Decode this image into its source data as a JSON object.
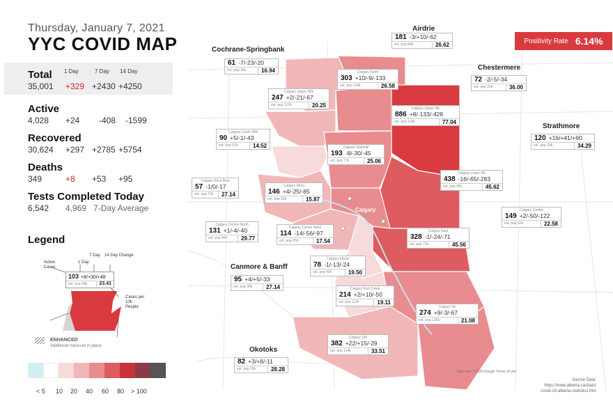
{
  "header": {
    "date": "Thursday, January 7, 2021",
    "title": "YYC COVID MAP"
  },
  "columns": {
    "day1": "1 Day",
    "day7": "7 Day",
    "day14": "14 Day"
  },
  "stats": {
    "total": {
      "label": "Total",
      "value": "35,001",
      "d1": "+329",
      "d7": "+2430",
      "d14": "+4250"
    },
    "active": {
      "label": "Active",
      "value": "4,028",
      "d1": "+24",
      "d7": "-408",
      "d14": "-1599"
    },
    "recovered": {
      "label": "Recovered",
      "value": "30,624",
      "d1": "+297",
      "d7": "+2785",
      "d14": "+5754"
    },
    "deaths": {
      "label": "Deaths",
      "value": "349",
      "d1": "+8",
      "d7": "+53",
      "d14": "+95"
    },
    "tests": {
      "label": "Tests Completed Today",
      "value": "6,542",
      "avg": "4,969",
      "avg_label": "7-Day Average"
    }
  },
  "legend": {
    "title": "Legend",
    "active_cases": "Active Cases",
    "day1": "1 Day",
    "day7": "7 Day",
    "day14": "14 Day Change",
    "example_count": "103",
    "example_change": "+8/+30/+48",
    "example_pop": "est. pop 44k",
    "example_per": "23.41",
    "per10k": "Cases per 10k People",
    "enhanced": "ENHANCED",
    "enhanced_sub": "Additional measure in place",
    "scale_colors": [
      "#d4eef3",
      "#ffffff",
      "#f7dada",
      "#f1b7b8",
      "#e88c8f",
      "#de5b60",
      "#c93238",
      "#8b3a4a",
      "#555555"
    ],
    "scale_labels": [
      "< 5",
      "10",
      "20",
      "40",
      "60",
      "80",
      "> 100"
    ]
  },
  "positivity": {
    "label": "Positivity Rate",
    "value": "6.14%"
  },
  "places": {
    "airdrie": "Airdrie",
    "cochrane": "Cochrane-Springbank",
    "chestermere": "Chestermere",
    "strathmore": "Strathmore",
    "canmore": "Canmore & Banff",
    "okotoks": "Okotoks",
    "calgary": "Calgary"
  },
  "regions": [
    {
      "key": "airdrie",
      "small": "",
      "count": "181",
      "change": "-3/+10/-62",
      "pop": "est. pop 68k",
      "per": "26.62"
    },
    {
      "key": "cochrane",
      "small": "",
      "count": "61",
      "change": "-7/-23/-20",
      "pop": "est. pop 36k",
      "per": "16.94"
    },
    {
      "key": "north",
      "small": "Calgary North",
      "count": "303",
      "change": "+10/-9/-133",
      "pop": "est. pop 114k",
      "per": "26.58"
    },
    {
      "key": "chestermere",
      "small": "",
      "count": "72",
      "change": "-2/-5/-34",
      "pop": "est. pop 20k",
      "per": "36.00"
    },
    {
      "key": "uppernw",
      "small": "Calgary Upper NW",
      "count": "247",
      "change": "+2/-21/-67",
      "pop": "est. pop 122k",
      "per": "20.25"
    },
    {
      "key": "upperne",
      "small": "Calgary Upper NE",
      "count": "886",
      "change": "+8/-133/-428",
      "pop": "est. pop 115k",
      "per": "77.04"
    },
    {
      "key": "strathmore",
      "small": "",
      "count": "120",
      "change": "+16/+41/+60",
      "pop": "est. pop 35k",
      "per": "34.29"
    },
    {
      "key": "lowernw",
      "small": "Calgary Lower NW",
      "count": "90",
      "change": "+5/-1/-43",
      "pop": "est. pop 62k",
      "per": "14.52"
    },
    {
      "key": "nosehill",
      "small": "Calgary Nosehill",
      "count": "193",
      "change": "-8/-30/-45",
      "pop": "est. pop 77k",
      "per": "25.06"
    },
    {
      "key": "lowerne",
      "small": "Calgary Lower NE",
      "count": "438",
      "change": "-16/-65/-283",
      "pop": "est. pop 96k",
      "per": "45.62"
    },
    {
      "key": "westbow",
      "small": "Calgary West Bow",
      "count": "57",
      "change": "-1/0/-17",
      "pop": "est. pop 21k",
      "per": "27.14"
    },
    {
      "key": "west",
      "small": "Calgary West",
      "count": "146",
      "change": "+4/-25/-85",
      "pop": "est. pop 92k",
      "per": "15.87"
    },
    {
      "key": "centre",
      "small": "Calgary Centre",
      "count": "149",
      "change": "+2/-50/-122",
      "pop": "est. pop 66k",
      "per": "22.58"
    },
    {
      "key": "centrenorth",
      "small": "Calgary Centre North",
      "count": "131",
      "change": "+1/-4/-40",
      "pop": "est. pop 44k",
      "per": "29.77"
    },
    {
      "key": "centrewest",
      "small": "Calgary Centre West",
      "count": "114",
      "change": "-14/-56/-97",
      "pop": "est. pop 65k",
      "per": "17.54"
    },
    {
      "key": "east",
      "small": "Calgary East",
      "count": "328",
      "change": "-1/-24/-71",
      "pop": "est. pop 72k",
      "per": "45.56"
    },
    {
      "key": "elbow",
      "small": "Calgary Elbow",
      "count": "78",
      "change": "-1/-13/-24",
      "pop": "est. pop 40k",
      "per": "19.50"
    },
    {
      "key": "canmore",
      "small": "",
      "count": "95",
      "change": "+4/+5/-33",
      "pop": "est. pop 35k",
      "per": "27.14"
    },
    {
      "key": "fishcreek",
      "small": "Calgary Fish Creek",
      "count": "214",
      "change": "+2/+10/-50",
      "pop": "est. pop 112k",
      "per": "19.11"
    },
    {
      "key": "se",
      "small": "Calgary SE",
      "count": "274",
      "change": "+9/-3/-67",
      "pop": "est. pop 130k",
      "per": "21.08"
    },
    {
      "key": "sw",
      "small": "Calgary SW",
      "count": "382",
      "change": "+22/+15/-29",
      "pop": "est. pop 114k",
      "per": "33.51"
    },
    {
      "key": "okotoks",
      "small": "",
      "count": "82",
      "change": "+3/+8/-11",
      "pop": "est. pop 29k",
      "per": "28.28"
    }
  ],
  "source": {
    "label": "Source Data:",
    "url1": "https://www.alberta.ca/stats/",
    "url2": "covid-19-alberta-statistics.htm"
  },
  "map_credit": "Map data ©2020 Google   Terms of Use",
  "colors": {
    "accent": "#d93a3f",
    "dark": "#c93238",
    "mid": "#e88c8f",
    "light": "#f1b7b8"
  }
}
